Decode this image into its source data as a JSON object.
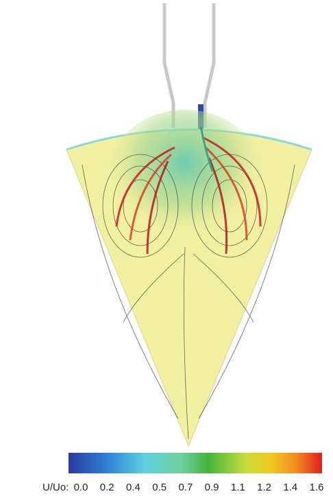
{
  "colorbar": {
    "label": "U/Uo:",
    "ticks": [
      "0.0",
      "0.2",
      "0.4",
      "0.5",
      "0.7",
      "0.9",
      "1.1",
      "1.2",
      "1.4",
      "1.6"
    ]
  }
}
